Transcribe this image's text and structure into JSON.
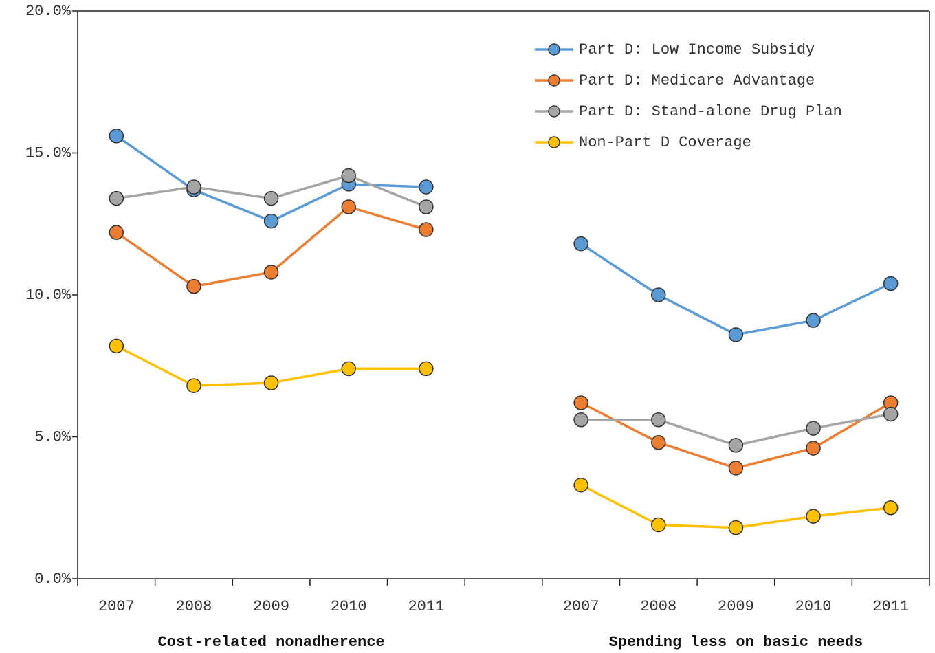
{
  "chart_data": {
    "type": "line",
    "categories": [
      "2007",
      "2008",
      "2009",
      "2010",
      "2011",
      null,
      "2007",
      "2008",
      "2009",
      "2010",
      "2011"
    ],
    "group_labels": [
      "Cost-related nonadherence",
      "Spending less on basic needs"
    ],
    "ylim": [
      0,
      20
    ],
    "yticks": [
      {
        "value": 0,
        "label": "0.0%"
      },
      {
        "value": 5,
        "label": "5.0%"
      },
      {
        "value": 10,
        "label": "10.0%"
      },
      {
        "value": 15,
        "label": "15.0%"
      },
      {
        "value": 20,
        "label": "20.0%"
      }
    ],
    "legend": "upper right",
    "series": [
      {
        "name": "Part D: Low Income Subsidy",
        "color": "#5b9bd5",
        "values": [
          15.6,
          13.7,
          12.6,
          13.9,
          13.8,
          null,
          11.8,
          10.0,
          8.6,
          9.1,
          10.4
        ]
      },
      {
        "name": "Part D: Medicare Advantage",
        "color": "#ed7d31",
        "values": [
          12.2,
          10.3,
          10.8,
          13.1,
          12.3,
          null,
          6.2,
          4.8,
          3.9,
          4.6,
          6.2
        ]
      },
      {
        "name": "Part D: Stand-alone Drug Plan",
        "color": "#a5a5a5",
        "values": [
          13.4,
          13.8,
          13.4,
          14.2,
          13.1,
          null,
          5.6,
          5.6,
          4.7,
          5.3,
          5.8
        ]
      },
      {
        "name": "Non-Part D Coverage",
        "color": "#ffc000",
        "values": [
          8.2,
          6.8,
          6.9,
          7.4,
          7.4,
          null,
          3.3,
          1.9,
          1.8,
          2.2,
          2.5
        ]
      }
    ]
  }
}
